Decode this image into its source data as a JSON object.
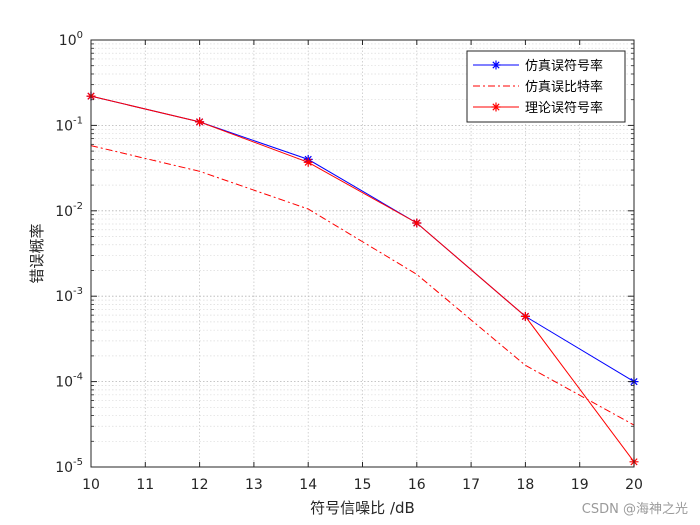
{
  "chart_data": {
    "type": "line",
    "xlabel": "符号信噪比 /dB",
    "ylabel": "错误概率",
    "xlim": [
      10,
      20
    ],
    "ylim": [
      1e-05,
      1
    ],
    "yscale": "log",
    "grid": true,
    "minor_grid": true,
    "legend_position": "top-right",
    "x_ticks": [
      10,
      11,
      12,
      13,
      14,
      15,
      16,
      17,
      18,
      19,
      20
    ],
    "y_tick_exponents": [
      0,
      -1,
      -2,
      -3,
      -4,
      -5
    ],
    "series": [
      {
        "name": "仿真误符号率",
        "color": "#0000ff",
        "line": "solid",
        "marker": "asterisk",
        "x": [
          10,
          12,
          14,
          16,
          18,
          20
        ],
        "y": [
          0.22,
          0.11,
          0.04,
          0.0072,
          0.00058,
          0.0001
        ]
      },
      {
        "name": "仿真误比特率",
        "color": "#ff0000",
        "line": "dashdot",
        "marker": "none",
        "x": [
          10,
          12,
          14,
          16,
          18,
          20
        ],
        "y": [
          0.058,
          0.029,
          0.0105,
          0.0018,
          0.000155,
          3.1e-05
        ]
      },
      {
        "name": "理论误符号率",
        "color": "#ff0000",
        "line": "solid",
        "marker": "asterisk",
        "x": [
          10,
          12,
          14,
          16,
          18,
          20
        ],
        "y": [
          0.22,
          0.11,
          0.037,
          0.0072,
          0.00058,
          1.15e-05
        ]
      }
    ]
  },
  "watermark": "CSDN @海神之光"
}
